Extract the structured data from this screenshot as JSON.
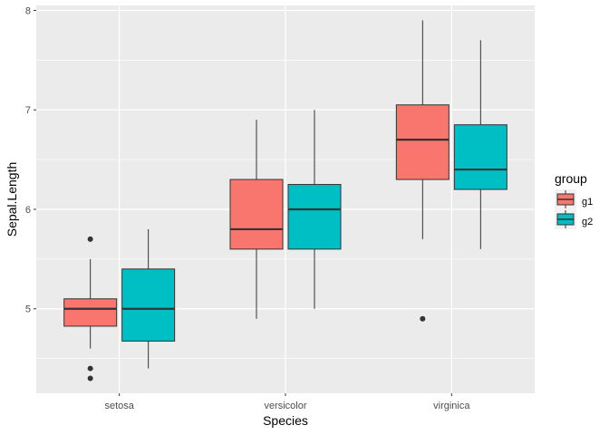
{
  "chart_data": {
    "type": "boxplot",
    "title": "",
    "xlabel": "Species",
    "ylabel": "Sepal.Length",
    "categories": [
      "setosa",
      "versicolor",
      "virginica"
    ],
    "ylim": [
      4.15,
      8.05
    ],
    "y_ticks": [
      5,
      6,
      7,
      8
    ],
    "y_tick_labels": [
      "5",
      "6",
      "7",
      "8"
    ],
    "grid": true,
    "legend": {
      "title": "group",
      "position": "right",
      "entries": [
        "g1",
        "g2"
      ]
    },
    "colors": {
      "g1": "#F8766D",
      "g2": "#00BFC4",
      "panel_background": "#EBEBEB",
      "grid": "#FFFFFF",
      "box_line": "#333333"
    },
    "series": [
      {
        "name": "g1",
        "boxes": [
          {
            "category": "setosa",
            "min": 4.6,
            "q1": 4.825,
            "median": 5.0,
            "q3": 5.1,
            "max": 5.5,
            "outliers": [
              5.7,
              4.4,
              4.3
            ]
          },
          {
            "category": "versicolor",
            "min": 4.9,
            "q1": 5.6,
            "median": 5.8,
            "q3": 6.3,
            "max": 6.9,
            "outliers": []
          },
          {
            "category": "virginica",
            "min": 5.7,
            "q1": 6.3,
            "median": 6.7,
            "q3": 7.05,
            "max": 7.9,
            "outliers": [
              4.9
            ]
          }
        ]
      },
      {
        "name": "g2",
        "boxes": [
          {
            "category": "setosa",
            "min": 4.4,
            "q1": 4.675,
            "median": 5.0,
            "q3": 5.4,
            "max": 5.8,
            "outliers": []
          },
          {
            "category": "versicolor",
            "min": 5.0,
            "q1": 5.6,
            "median": 6.0,
            "q3": 6.25,
            "max": 7.0,
            "outliers": []
          },
          {
            "category": "virginica",
            "min": 5.6,
            "q1": 6.2,
            "median": 6.4,
            "q3": 6.85,
            "max": 7.7,
            "outliers": []
          }
        ]
      }
    ]
  }
}
